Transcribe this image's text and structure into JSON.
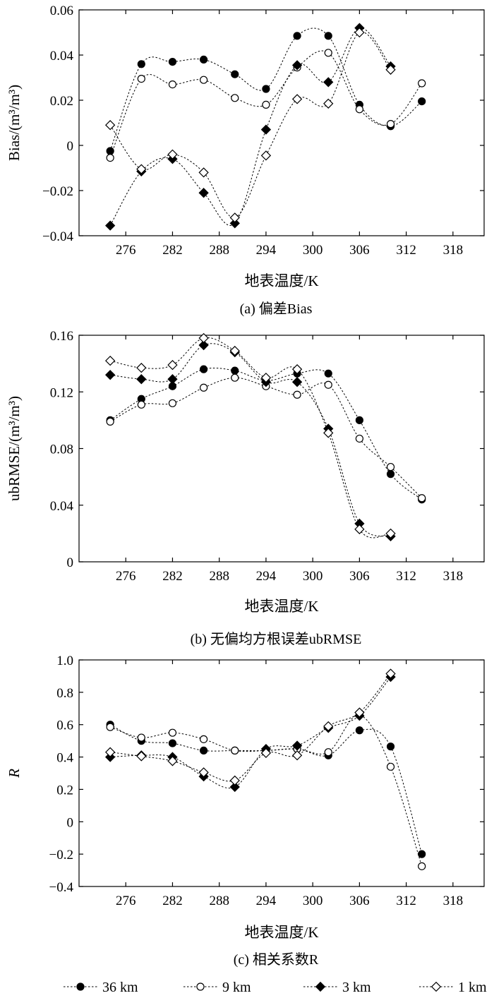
{
  "legend": [
    {
      "label": "36 km",
      "marker": "circle",
      "fill": "#000000"
    },
    {
      "label": "9 km",
      "marker": "circle",
      "fill": "#ffffff"
    },
    {
      "label": "3 km",
      "marker": "diamond",
      "fill": "#000000"
    },
    {
      "label": "1 km",
      "marker": "diamond",
      "fill": "#ffffff"
    }
  ],
  "chart_data": [
    {
      "type": "line",
      "caption": "(a) 偏差Bias",
      "xlabel": "地表温度/K",
      "ylabel": "Bias/(m³/m³)",
      "xlim": [
        270,
        322
      ],
      "ylim": [
        -0.04,
        0.06
      ],
      "xticks": [
        276,
        282,
        288,
        294,
        300,
        306,
        312,
        318
      ],
      "yticks": [
        -0.04,
        -0.02,
        0,
        0.02,
        0.04,
        0.06
      ],
      "ytick_labels": [
        "−0.04",
        "−0.02",
        "0",
        "0.02",
        "0.04",
        "0.06"
      ],
      "grid": false,
      "series": [
        {
          "name": "36 km",
          "x": [
            274,
            278,
            282,
            286,
            290,
            294,
            298,
            302,
            306,
            310,
            314
          ],
          "y": [
            -0.0025,
            0.036,
            0.037,
            0.038,
            0.0315,
            0.025,
            0.0485,
            0.0485,
            0.018,
            0.0085,
            0.0195
          ]
        },
        {
          "name": "9 km",
          "x": [
            274,
            278,
            282,
            286,
            290,
            294,
            298,
            302,
            306,
            310,
            314
          ],
          "y": [
            -0.0055,
            0.0295,
            0.027,
            0.029,
            0.021,
            0.018,
            0.0345,
            0.041,
            0.016,
            0.0095,
            0.0275
          ]
        },
        {
          "name": "3 km",
          "x": [
            274,
            278,
            282,
            286,
            290,
            294,
            298,
            302,
            306,
            310
          ],
          "y": [
            -0.0355,
            -0.0115,
            -0.006,
            -0.021,
            -0.0345,
            0.007,
            0.0355,
            0.028,
            0.052,
            0.035
          ]
        },
        {
          "name": "1 km",
          "x": [
            274,
            278,
            282,
            286,
            290,
            294,
            298,
            302,
            306,
            310
          ],
          "y": [
            0.009,
            -0.0105,
            -0.004,
            -0.012,
            -0.032,
            -0.0045,
            0.0205,
            0.0185,
            0.05,
            0.0335
          ]
        }
      ]
    },
    {
      "type": "line",
      "caption": "(b) 无偏均方根误差ubRMSE",
      "xlabel": "地表温度/K",
      "ylabel": "ubRMSE/(m³/m³)",
      "xlim": [
        270,
        322
      ],
      "ylim": [
        0,
        0.16
      ],
      "xticks": [
        276,
        282,
        288,
        294,
        300,
        306,
        312,
        318
      ],
      "yticks": [
        0,
        0.04,
        0.08,
        0.12,
        0.16
      ],
      "ytick_labels": [
        "0",
        "0.04",
        "0.08",
        "0.12",
        "0.16"
      ],
      "grid": false,
      "series": [
        {
          "name": "36 km",
          "x": [
            274,
            278,
            282,
            286,
            290,
            294,
            298,
            302,
            306,
            310,
            314
          ],
          "y": [
            0.1,
            0.115,
            0.124,
            0.136,
            0.135,
            0.128,
            0.133,
            0.133,
            0.1,
            0.062,
            0.044
          ]
        },
        {
          "name": "9 km",
          "x": [
            274,
            278,
            282,
            286,
            290,
            294,
            298,
            302,
            306,
            310,
            314
          ],
          "y": [
            0.099,
            0.111,
            0.112,
            0.123,
            0.13,
            0.124,
            0.118,
            0.125,
            0.087,
            0.067,
            0.045
          ]
        },
        {
          "name": "3 km",
          "x": [
            274,
            278,
            282,
            286,
            290,
            294,
            298,
            302,
            306,
            310
          ],
          "y": [
            0.132,
            0.129,
            0.129,
            0.153,
            0.148,
            0.127,
            0.127,
            0.094,
            0.027,
            0.018
          ]
        },
        {
          "name": "1 km",
          "x": [
            274,
            278,
            282,
            286,
            290,
            294,
            298,
            302,
            306,
            310
          ],
          "y": [
            0.142,
            0.137,
            0.139,
            0.158,
            0.149,
            0.13,
            0.136,
            0.091,
            0.023,
            0.02
          ]
        }
      ]
    },
    {
      "type": "line",
      "caption": "(c) 相关系数R",
      "xlabel": "地表温度/K",
      "ylabel": "R",
      "xlim": [
        270,
        322
      ],
      "ylim": [
        -0.4,
        1.0
      ],
      "xticks": [
        276,
        282,
        288,
        294,
        300,
        306,
        312,
        318
      ],
      "yticks": [
        -0.4,
        -0.2,
        0,
        0.2,
        0.4,
        0.6,
        0.8,
        1.0
      ],
      "ytick_labels": [
        "−0.4",
        "−0.2",
        "0",
        "0.2",
        "0.4",
        "0.6",
        "0.8",
        "1.0"
      ],
      "grid": false,
      "series": [
        {
          "name": "36 km",
          "x": [
            274,
            278,
            282,
            286,
            290,
            294,
            298,
            302,
            306,
            310,
            314
          ],
          "y": [
            0.6,
            0.5,
            0.485,
            0.44,
            0.44,
            0.44,
            0.45,
            0.41,
            0.565,
            0.465,
            -0.2
          ]
        },
        {
          "name": "9 km",
          "x": [
            274,
            278,
            282,
            286,
            290,
            294,
            298,
            302,
            306,
            310,
            314
          ],
          "y": [
            0.585,
            0.52,
            0.55,
            0.51,
            0.44,
            0.44,
            0.45,
            0.43,
            0.66,
            0.34,
            -0.275
          ]
        },
        {
          "name": "3 km",
          "x": [
            274,
            278,
            282,
            286,
            290,
            294,
            298,
            302,
            306,
            310
          ],
          "y": [
            0.4,
            0.41,
            0.4,
            0.28,
            0.215,
            0.45,
            0.47,
            0.58,
            0.655,
            0.895
          ]
        },
        {
          "name": "1 km",
          "x": [
            274,
            278,
            282,
            286,
            290,
            294,
            298,
            302,
            306,
            310
          ],
          "y": [
            0.43,
            0.405,
            0.375,
            0.305,
            0.255,
            0.425,
            0.41,
            0.59,
            0.675,
            0.915
          ]
        }
      ]
    }
  ]
}
